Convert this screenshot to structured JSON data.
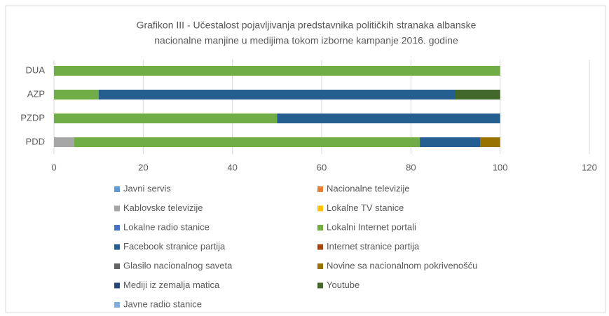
{
  "chart_data": {
    "type": "stacked-bar-horizontal",
    "title": [
      "Grafikon III - Učestalost pojavljivanja predstavnika političkih stranaka albanske",
      "nacionalne manjine u medijima tokom izborne kampanje 2016. godine"
    ],
    "categories": [
      "DUA",
      "AZP",
      "PZDP",
      "PDD"
    ],
    "xlim": [
      0,
      120
    ],
    "xticks": [
      0,
      20,
      40,
      60,
      80,
      100,
      120
    ],
    "grid": true,
    "series": [
      {
        "name": "Javni servis",
        "color": "#5b9bd5",
        "values": [
          0,
          0,
          0,
          0
        ]
      },
      {
        "name": "Nacionalne televizije",
        "color": "#ed7d31",
        "values": [
          0,
          0,
          0,
          0
        ]
      },
      {
        "name": "Kablovske televizije",
        "color": "#a5a5a5",
        "values": [
          0,
          0,
          0,
          4.5
        ]
      },
      {
        "name": "Lokalne TV stanice",
        "color": "#ffc000",
        "values": [
          0,
          0,
          0,
          0
        ]
      },
      {
        "name": "Lokalne radio stanice",
        "color": "#4472c4",
        "values": [
          0,
          0,
          0,
          0
        ]
      },
      {
        "name": "Lokalni Internet portali",
        "color": "#70ad47",
        "values": [
          100,
          10,
          50,
          77.5
        ]
      },
      {
        "name": "Facebook stranice partija",
        "color": "#255e91",
        "values": [
          0,
          80,
          50,
          13.5
        ]
      },
      {
        "name": "Internet stranice partija",
        "color": "#9e480e",
        "values": [
          0,
          0,
          0,
          0
        ]
      },
      {
        "name": "Glasilo nacionalnog saveta",
        "color": "#636363",
        "values": [
          0,
          0,
          0,
          0
        ]
      },
      {
        "name": "Novine sa nacionalnom pokrivenošću",
        "color": "#997300",
        "values": [
          0,
          0,
          0,
          4.5
        ]
      },
      {
        "name": "Mediji iz zemalja matica",
        "color": "#264478",
        "values": [
          0,
          0,
          0,
          0
        ]
      },
      {
        "name": "Youtube",
        "color": "#43682b",
        "values": [
          0,
          10,
          0,
          0
        ]
      },
      {
        "name": "Javne radio stanice",
        "color": "#7cafdd",
        "values": [
          0,
          0,
          0,
          0
        ]
      }
    ]
  }
}
